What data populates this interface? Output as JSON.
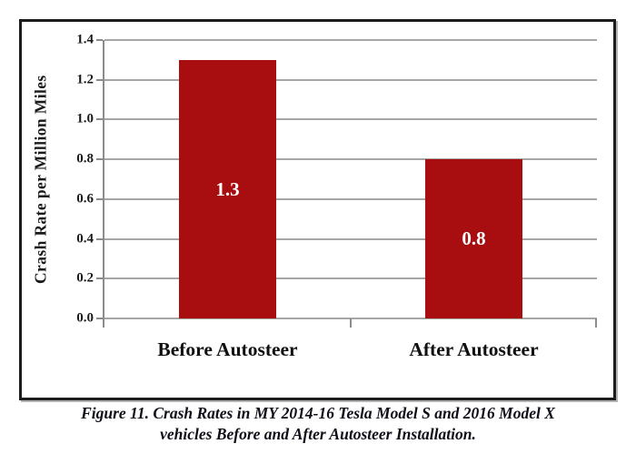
{
  "figure": {
    "caption_line1": "Figure 11. Crash Rates in MY 2014-16 Tesla Model S and 2016 Model X",
    "caption_line2": "vehicles Before and After Autosteer Installation."
  },
  "chart_data": {
    "type": "bar",
    "categories": [
      "Before Autosteer",
      "After Autosteer"
    ],
    "values": [
      1.3,
      0.8
    ],
    "value_labels": [
      "1.3",
      "0.8"
    ],
    "title": "",
    "xlabel": "",
    "ylabel": "Crash Rate per Million Miles",
    "ylim": [
      0.0,
      1.4
    ],
    "ytick_step": 0.2,
    "ytick_labels": [
      "0.0",
      "0.2",
      "0.4",
      "0.6",
      "0.8",
      "1.0",
      "1.2",
      "1.4"
    ],
    "grid": true,
    "legend": "none",
    "colors": {
      "bar": "#a80e0f",
      "bar_value_label": "#ffffff",
      "gridline": "#a6a6a6",
      "axis": "#8c8c8c",
      "tick_label": "#1a1a1a",
      "category_label": "#111111",
      "frame_border": "#1c1c1c",
      "caption_text": "#0e0e18",
      "background": "#ffffff"
    }
  }
}
